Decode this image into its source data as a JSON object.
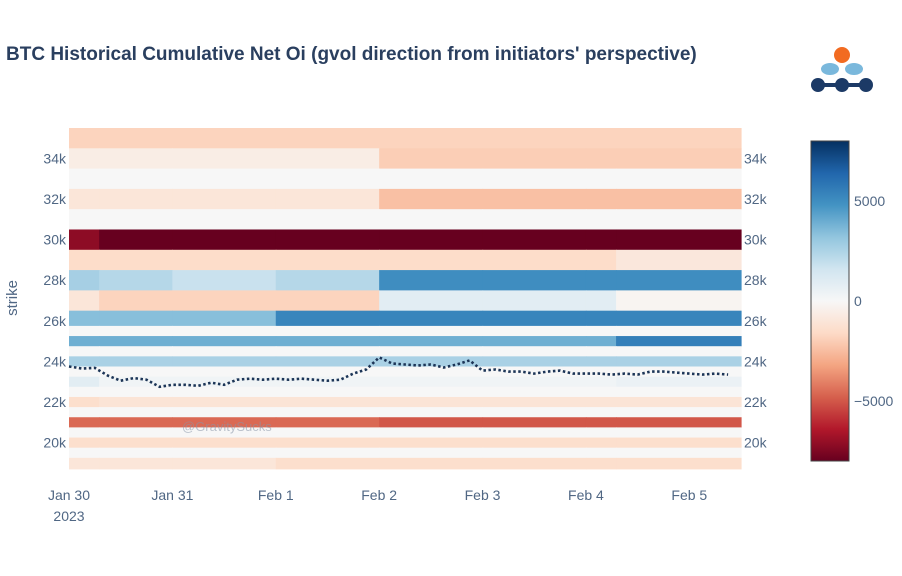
{
  "title": "BTC Historical Cumulative Net Oi (gvol direction from initiators' perspective)",
  "watermark": "@GravitySucks",
  "logo": {
    "icon": "gvol-logo",
    "colors": [
      "#f26b21",
      "#7ab8dc",
      "#1c3a66"
    ]
  },
  "chart_data": {
    "type": "heatmap",
    "title": "BTC Historical Cumulative Net Oi (gvol direction from initiators' perspective)",
    "xlabel": "",
    "ylabel": "strike",
    "x_ticks": [
      {
        "date": "2023-01-30",
        "label": "Jan 30",
        "sublabel": "2023"
      },
      {
        "date": "2023-01-31",
        "label": "Jan 31"
      },
      {
        "date": "2023-02-01",
        "label": "Feb 1"
      },
      {
        "date": "2023-02-02",
        "label": "Feb 2"
      },
      {
        "date": "2023-02-03",
        "label": "Feb 3"
      },
      {
        "date": "2023-02-04",
        "label": "Feb 4"
      },
      {
        "date": "2023-02-05",
        "label": "Feb 5"
      }
    ],
    "y_ticks": [
      {
        "value": 20000,
        "label": "20k"
      },
      {
        "value": 22000,
        "label": "22k"
      },
      {
        "value": 24000,
        "label": "24k"
      },
      {
        "value": 26000,
        "label": "26k"
      },
      {
        "value": 28000,
        "label": "28k"
      },
      {
        "value": 30000,
        "label": "30k"
      },
      {
        "value": 32000,
        "label": "32k"
      },
      {
        "value": 34000,
        "label": "34k"
      }
    ],
    "xlim": [
      "2023-01-30 00:00",
      "2023-02-05 12:00"
    ],
    "ylim": [
      18700,
      35500
    ],
    "colorscale": {
      "min": -8000,
      "max": 8000,
      "ticks": [
        {
          "value": 5000,
          "label": "5000"
        },
        {
          "value": 0,
          "label": "0"
        },
        {
          "value": -5000,
          "label": "−5000"
        }
      ],
      "stops": [
        {
          "f": 0.0,
          "c": "#67001f"
        },
        {
          "f": 0.1,
          "c": "#b2182b"
        },
        {
          "f": 0.2,
          "c": "#d6604d"
        },
        {
          "f": 0.3,
          "c": "#f4a582"
        },
        {
          "f": 0.4,
          "c": "#fddbc7"
        },
        {
          "f": 0.5,
          "c": "#f7f7f7"
        },
        {
          "f": 0.6,
          "c": "#d1e5f0"
        },
        {
          "f": 0.7,
          "c": "#92c5de"
        },
        {
          "f": 0.8,
          "c": "#4393c3"
        },
        {
          "f": 0.9,
          "c": "#2166ac"
        },
        {
          "f": 1.0,
          "c": "#053061"
        }
      ]
    },
    "time_columns": [
      "2023-01-30 00:00",
      "2023-01-30 07:00",
      "2023-01-31 00:00",
      "2023-02-01 00:00",
      "2023-02-02 00:00",
      "2023-02-03 00:00",
      "2023-02-04 00:00",
      "2023-02-04 07:00",
      "2023-02-05 12:00"
    ],
    "cells": [
      {
        "strike": 35000,
        "z": [
          -1800,
          -1800,
          -1800,
          -1800,
          -1800,
          -1800,
          -1800,
          -1800
        ]
      },
      {
        "strike": 34000,
        "z": [
          -600,
          -600,
          -600,
          -600,
          -2000,
          -2000,
          -2000,
          -2000
        ]
      },
      {
        "strike": 33000,
        "z": [
          0,
          0,
          0,
          0,
          0,
          0,
          0,
          0
        ]
      },
      {
        "strike": 32000,
        "z": [
          -1000,
          -1000,
          -1000,
          -1000,
          -2400,
          -2400,
          -2400,
          -2400
        ]
      },
      {
        "strike": 31000,
        "z": [
          0,
          0,
          0,
          0,
          0,
          0,
          0,
          0
        ]
      },
      {
        "strike": 30000,
        "z": [
          -7200,
          -8000,
          -8000,
          -8000,
          -8000,
          -8000,
          -8000,
          -8000
        ]
      },
      {
        "strike": 29000,
        "z": [
          -1500,
          -1500,
          -1500,
          -1500,
          -1500,
          -1500,
          -1500,
          -900
        ]
      },
      {
        "strike": 28000,
        "z": [
          2700,
          2300,
          1800,
          2300,
          5000,
          5000,
          5000,
          5000
        ]
      },
      {
        "strike": 27000,
        "z": [
          -1000,
          -1800,
          -1800,
          -1800,
          900,
          900,
          900,
          -200
        ]
      },
      {
        "strike": 26000,
        "z": [
          3400,
          3400,
          3400,
          5300,
          5300,
          5300,
          5300,
          5300
        ]
      },
      {
        "strike": 25500,
        "z": [
          0,
          0,
          0,
          0,
          0,
          0,
          0,
          0
        ]
      },
      {
        "strike": 25000,
        "z": [
          3900,
          3900,
          3900,
          3900,
          3900,
          3900,
          3900,
          5500
        ]
      },
      {
        "strike": 24500,
        "z": [
          0,
          0,
          0,
          0,
          0,
          0,
          0,
          0
        ]
      },
      {
        "strike": 24000,
        "z": [
          2600,
          2600,
          2600,
          2600,
          2600,
          2600,
          2600,
          2600
        ]
      },
      {
        "strike": 23500,
        "z": [
          0,
          0,
          0,
          0,
          0,
          0,
          0,
          0
        ]
      },
      {
        "strike": 23000,
        "z": [
          900,
          300,
          300,
          300,
          300,
          300,
          300,
          500
        ]
      },
      {
        "strike": 22500,
        "z": [
          0,
          0,
          0,
          0,
          0,
          0,
          0,
          0
        ]
      },
      {
        "strike": 22000,
        "z": [
          -1400,
          -1100,
          -1100,
          -1100,
          -1100,
          -1100,
          -1100,
          -1100
        ]
      },
      {
        "strike": 21500,
        "z": [
          0,
          0,
          0,
          0,
          0,
          0,
          0,
          0
        ]
      },
      {
        "strike": 21000,
        "z": [
          -4600,
          -4600,
          -4600,
          -4600,
          -5000,
          -5000,
          -5000,
          -5000
        ]
      },
      {
        "strike": 20500,
        "z": [
          0,
          0,
          0,
          0,
          0,
          0,
          0,
          0
        ]
      },
      {
        "strike": 20000,
        "z": [
          -1400,
          -1400,
          -1400,
          -1400,
          -1400,
          -1400,
          -1400,
          -1400
        ]
      },
      {
        "strike": 19500,
        "z": [
          0,
          0,
          0,
          0,
          0,
          0,
          0,
          0
        ]
      },
      {
        "strike": 19000,
        "z": [
          -1000,
          -1000,
          -1000,
          -1400,
          -1400,
          -1400,
          -1400,
          -1400
        ]
      }
    ],
    "price_line": {
      "name": "BTC price",
      "style": "dotted",
      "color": "#1c3557",
      "points": [
        [
          "2023-01-30 00:00",
          23750
        ],
        [
          "2023-01-30 03:00",
          23650
        ],
        [
          "2023-01-30 06:00",
          23680
        ],
        [
          "2023-01-30 09:00",
          23300
        ],
        [
          "2023-01-30 12:00",
          23050
        ],
        [
          "2023-01-30 15:00",
          23180
        ],
        [
          "2023-01-30 18:00",
          23100
        ],
        [
          "2023-01-30 21:00",
          22750
        ],
        [
          "2023-01-31 00:00",
          22850
        ],
        [
          "2023-01-31 03:00",
          22850
        ],
        [
          "2023-01-31 06:00",
          22800
        ],
        [
          "2023-01-31 09:00",
          22950
        ],
        [
          "2023-01-31 12:00",
          22850
        ],
        [
          "2023-01-31 15:00",
          23100
        ],
        [
          "2023-01-31 18:00",
          23150
        ],
        [
          "2023-01-31 21:00",
          23100
        ],
        [
          "2023-02-01 00:00",
          23150
        ],
        [
          "2023-02-01 03:00",
          23100
        ],
        [
          "2023-02-01 06:00",
          23150
        ],
        [
          "2023-02-01 09:00",
          23100
        ],
        [
          "2023-02-01 12:00",
          23050
        ],
        [
          "2023-02-01 15:00",
          23100
        ],
        [
          "2023-02-01 18:00",
          23400
        ],
        [
          "2023-02-01 21:00",
          23600
        ],
        [
          "2023-02-02 00:00",
          24200
        ],
        [
          "2023-02-02 03:00",
          23900
        ],
        [
          "2023-02-02 06:00",
          23850
        ],
        [
          "2023-02-02 09:00",
          23800
        ],
        [
          "2023-02-02 12:00",
          23850
        ],
        [
          "2023-02-02 15:00",
          23700
        ],
        [
          "2023-02-02 18:00",
          23850
        ],
        [
          "2023-02-02 21:00",
          24050
        ],
        [
          "2023-02-03 00:00",
          23550
        ],
        [
          "2023-02-03 03:00",
          23600
        ],
        [
          "2023-02-03 06:00",
          23500
        ],
        [
          "2023-02-03 09:00",
          23500
        ],
        [
          "2023-02-03 12:00",
          23400
        ],
        [
          "2023-02-03 15:00",
          23500
        ],
        [
          "2023-02-03 18:00",
          23550
        ],
        [
          "2023-02-03 21:00",
          23400
        ],
        [
          "2023-02-04 00:00",
          23400
        ],
        [
          "2023-02-04 03:00",
          23400
        ],
        [
          "2023-02-04 06:00",
          23350
        ],
        [
          "2023-02-04 09:00",
          23400
        ],
        [
          "2023-02-04 12:00",
          23350
        ],
        [
          "2023-02-04 15:00",
          23500
        ],
        [
          "2023-02-04 18:00",
          23500
        ],
        [
          "2023-02-04 21:00",
          23450
        ],
        [
          "2023-02-05 00:00",
          23400
        ],
        [
          "2023-02-05 03:00",
          23350
        ],
        [
          "2023-02-05 06:00",
          23400
        ],
        [
          "2023-02-05 09:00",
          23350
        ]
      ]
    },
    "grid": false,
    "legend": "colorbar-right"
  }
}
